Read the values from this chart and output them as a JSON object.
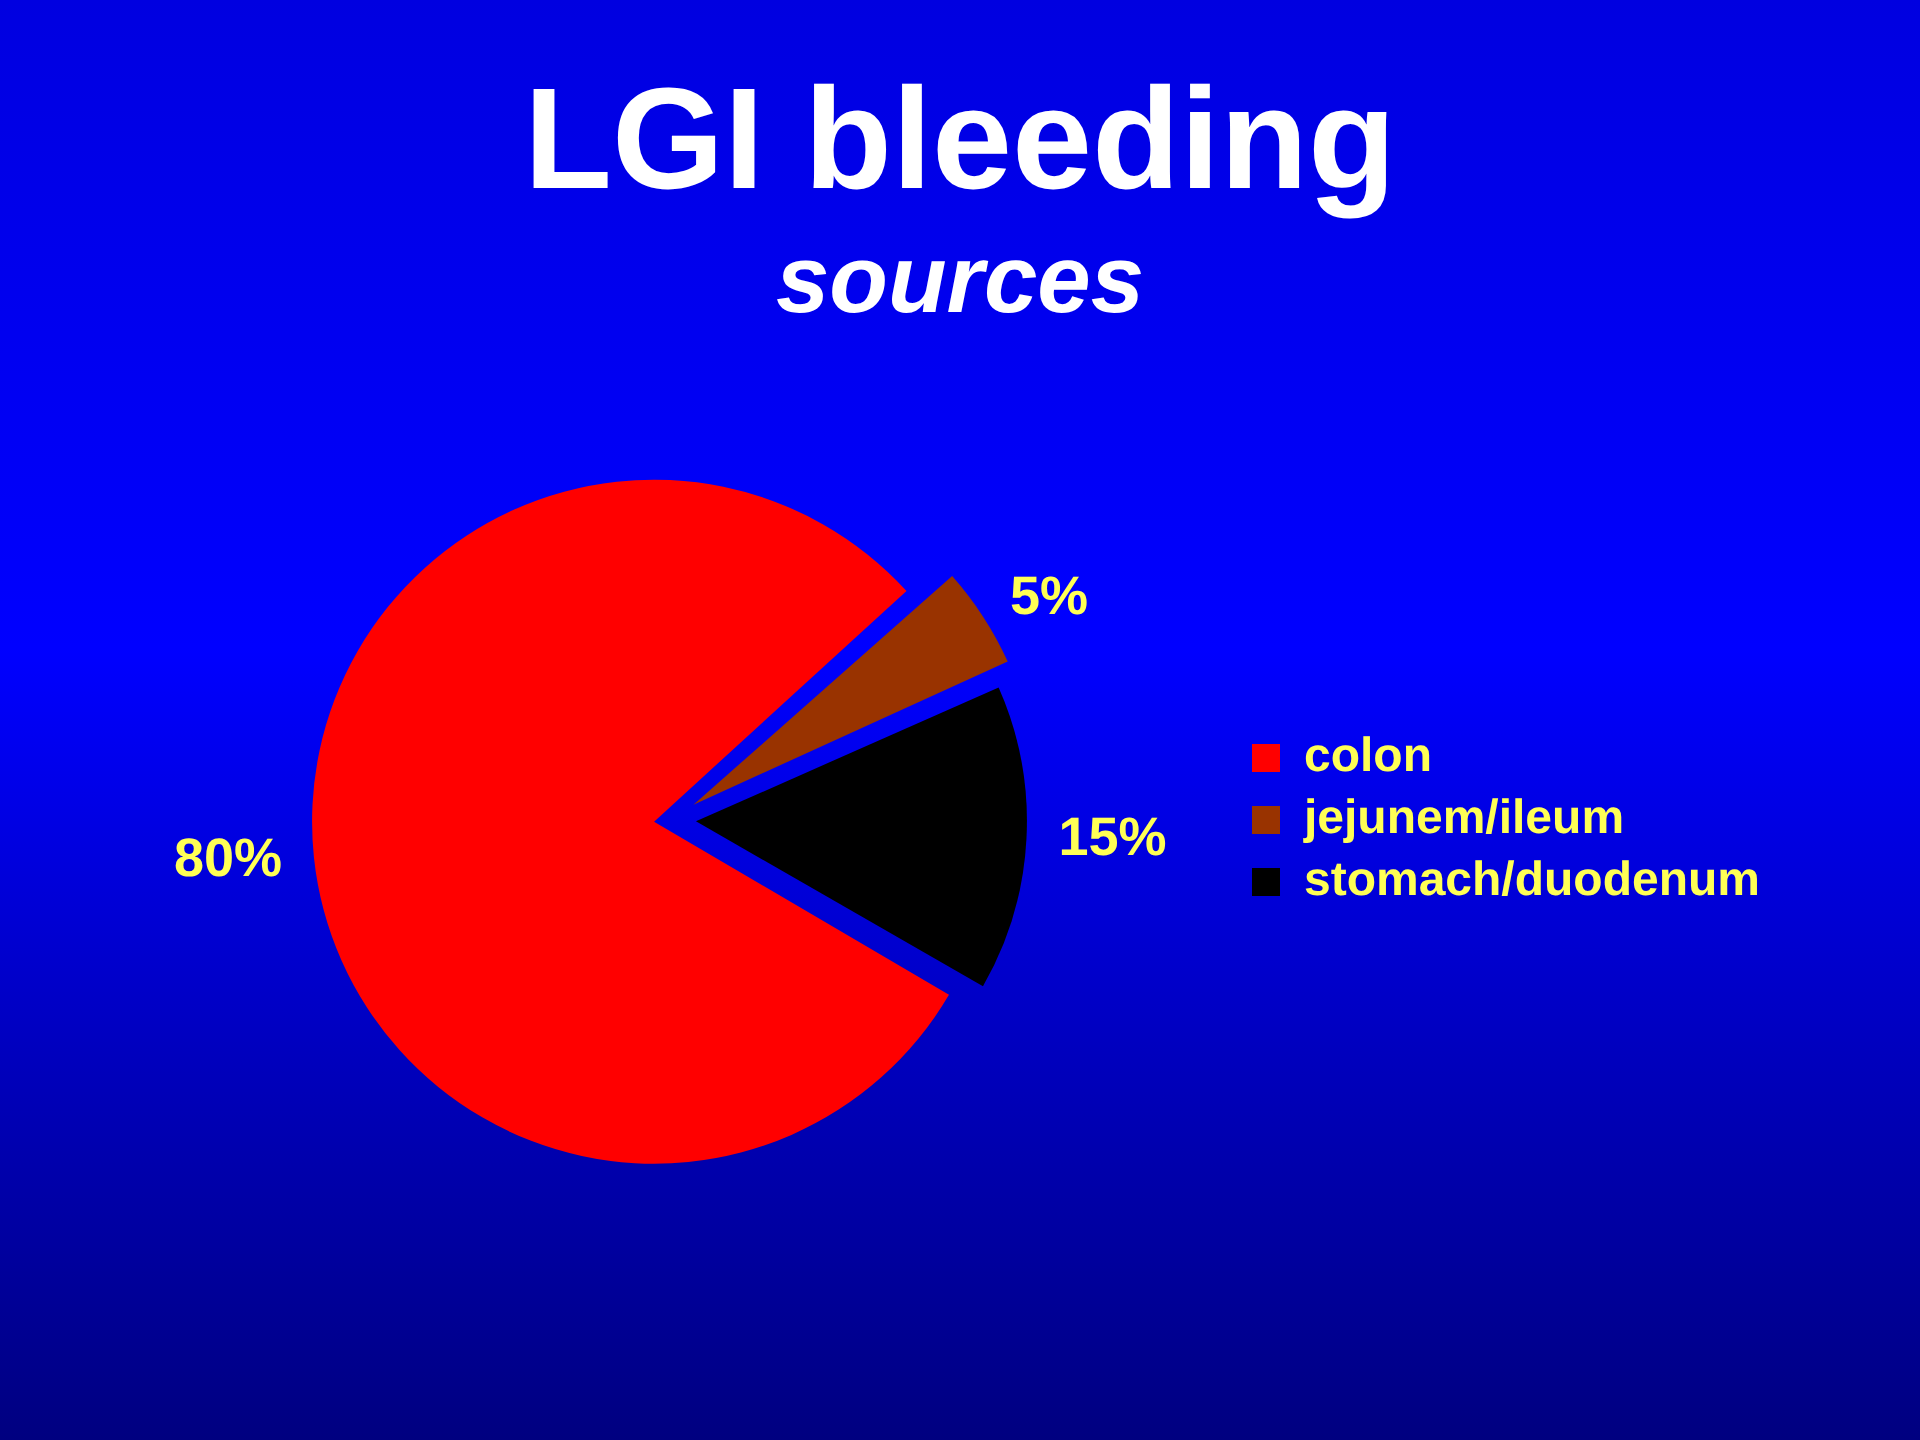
{
  "chart_data": {
    "type": "pie",
    "title": "LGI bleeding",
    "subtitle": "sources",
    "categories": [
      "colon",
      "jejunem/ileum",
      "stomach/duodenum"
    ],
    "values": [
      80,
      5,
      15
    ],
    "colors": [
      "#ff0000",
      "#993300",
      "#000000"
    ],
    "value_labels": [
      "80%",
      "5%",
      "15%"
    ],
    "legend": "right"
  }
}
